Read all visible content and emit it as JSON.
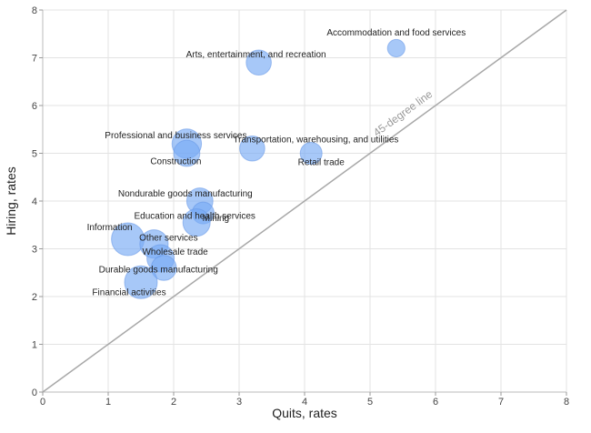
{
  "chart_data": {
    "type": "scatter",
    "xlabel": "Quits, rates",
    "ylabel": "Hiring, rates",
    "xlim": [
      0,
      8
    ],
    "ylim": [
      0,
      8
    ],
    "x_ticks": [
      0,
      1,
      2,
      3,
      4,
      5,
      6,
      7,
      8
    ],
    "y_ticks": [
      0,
      1,
      2,
      3,
      4,
      5,
      6,
      7,
      8
    ],
    "grid": true,
    "reference_line": {
      "label": "45-degree line",
      "from": [
        0,
        0
      ],
      "to": [
        8,
        8
      ]
    },
    "points": [
      {
        "label": "Accommodation and food services",
        "x": 5.4,
        "y": 7.2,
        "size": 1.6
      },
      {
        "label": "Arts, entertainment, and recreation",
        "x": 3.3,
        "y": 6.9,
        "size": 2.3
      },
      {
        "label": "Professional and business services",
        "x": 2.2,
        "y": 5.2,
        "size": 2.7
      },
      {
        "label": "Construction",
        "x": 2.2,
        "y": 5.0,
        "size": 2.4
      },
      {
        "label": "Transportation, warehousing, and utilities",
        "x": 3.2,
        "y": 5.1,
        "size": 2.3
      },
      {
        "label": "Retail trade",
        "x": 4.1,
        "y": 5.0,
        "size": 2.0
      },
      {
        "label": "Nondurable goods manufacturing",
        "x": 2.4,
        "y": 4.0,
        "size": 2.4
      },
      {
        "label": "Mining",
        "x": 2.45,
        "y": 3.75,
        "size": 2.0
      },
      {
        "label": "Education and health services",
        "x": 2.35,
        "y": 3.55,
        "size": 2.5
      },
      {
        "label": "Information",
        "x": 1.3,
        "y": 3.2,
        "size": 3.0
      },
      {
        "label": "Other services",
        "x": 1.7,
        "y": 3.1,
        "size": 2.6
      },
      {
        "label": "Wholesale trade",
        "x": 1.8,
        "y": 2.8,
        "size": 2.5
      },
      {
        "label": "Durable goods manufacturing",
        "x": 1.85,
        "y": 2.6,
        "size": 2.3
      },
      {
        "label": "Financial activities",
        "x": 1.5,
        "y": 2.3,
        "size": 3.0
      }
    ]
  }
}
